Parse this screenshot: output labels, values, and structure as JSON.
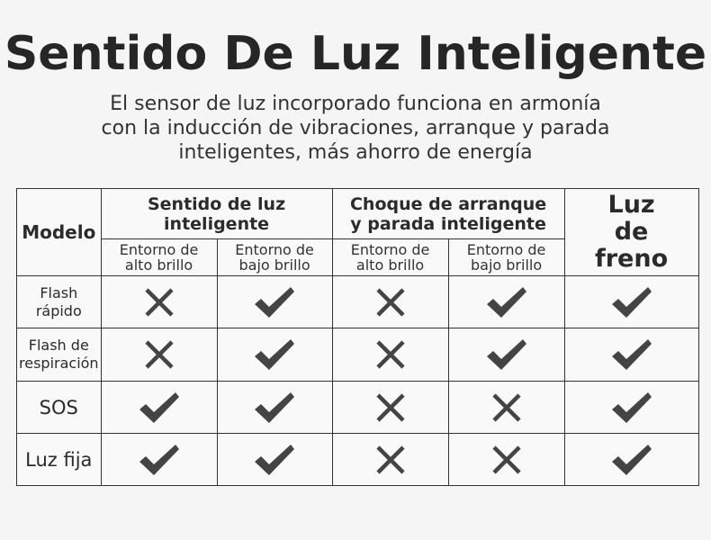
{
  "title": "Sentido De Luz Inteligente",
  "subtitle": [
    "El sensor de luz incorporado funciona en armonía",
    "con la inducción de vibraciones, arranque y parada",
    "inteligentes, más ahorro de energía"
  ],
  "table": {
    "model_header": "Modelo",
    "group1": {
      "label": "Sentido de luz inteligente",
      "cols": [
        "Entorno de alto brillo",
        "Entorno de bajo brillo"
      ]
    },
    "group2": {
      "label": "Choque de arranque y parada inteligente",
      "cols": [
        "Entorno de alto brillo",
        "Entorno de bajo brillo"
      ]
    },
    "brake_header": "Luz de freno",
    "rows": [
      {
        "model": "Flash rápido",
        "marks": [
          "cross-icon",
          "check-icon",
          "cross-icon",
          "check-icon",
          "check-icon"
        ]
      },
      {
        "model": "Flash de respiración",
        "marks": [
          "cross-icon",
          "check-icon",
          "cross-icon",
          "check-icon",
          "check-icon"
        ]
      },
      {
        "model": "SOS",
        "marks": [
          "check-icon",
          "check-icon",
          "cross-icon",
          "cross-icon",
          "check-icon"
        ]
      },
      {
        "model": "Luz fija",
        "marks": [
          "check-icon",
          "check-icon",
          "cross-icon",
          "cross-icon",
          "check-icon"
        ]
      }
    ]
  },
  "colors": {
    "text": "#2b2b2b",
    "mark": "#444444",
    "border": "#333333"
  }
}
